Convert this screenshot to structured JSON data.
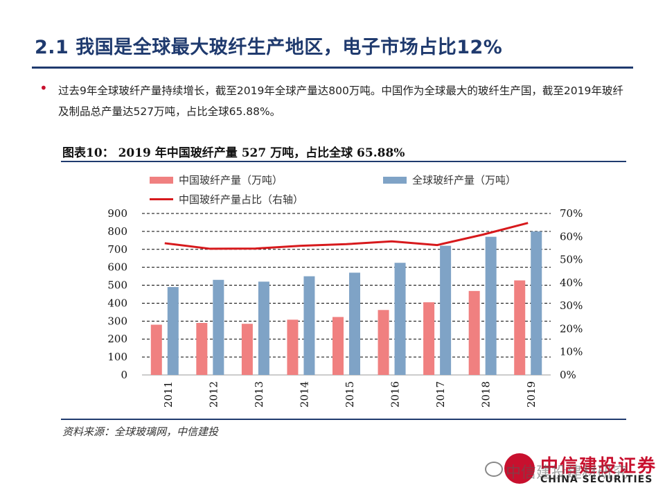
{
  "slide": {
    "title": "2.1 我国是全球最大玻纤生产地区，电子市场占比12%",
    "paragraph": "过去9年全球玻纤产量持续增长，截至2019年全球产量达800万吨。中国作为全球最大的玻纤生产国，截至2019年玻纤及制品总产量达527万吨，占比全球65.88%。"
  },
  "figure": {
    "title": "图表10： 2019 年中国玻纤产量 527 万吨，占比全球 65.88%",
    "source": "资料来源：全球玻璃网，中信建投"
  },
  "branding": {
    "name_cn": "中信建投证券",
    "name_en": "CHINA SECURITIES",
    "watermark": "中信建投建材研究"
  },
  "colors": {
    "china_bar": "#f08080",
    "global_bar": "#7fa3c6",
    "share_line": "#d7191c",
    "accent": "#1f3a6e"
  },
  "chart_data": {
    "type": "bar",
    "categories": [
      "2011",
      "2012",
      "2013",
      "2014",
      "2015",
      "2016",
      "2017",
      "2018",
      "2019"
    ],
    "series": [
      {
        "name": "中国玻纤产量（万吨）",
        "type": "bar",
        "axis": "left",
        "values": [
          280,
          290,
          285,
          308,
          323,
          362,
          405,
          468,
          527
        ]
      },
      {
        "name": "全球玻纤产量（万吨）",
        "type": "bar",
        "axis": "left",
        "values": [
          490,
          530,
          520,
          550,
          570,
          625,
          720,
          770,
          800
        ]
      },
      {
        "name": "中国玻纤产量占比（右轴）",
        "type": "line",
        "axis": "right",
        "values": [
          0.571,
          0.547,
          0.548,
          0.56,
          0.567,
          0.579,
          0.563,
          0.608,
          0.659
        ]
      }
    ],
    "y_left": {
      "min": 0,
      "max": 900,
      "ticks": [
        0,
        100,
        200,
        300,
        400,
        500,
        600,
        700,
        800,
        900
      ]
    },
    "y_right": {
      "min": 0,
      "max": 0.7,
      "ticks": [
        "0%",
        "10%",
        "20%",
        "30%",
        "40%",
        "50%",
        "60%",
        "70%"
      ]
    },
    "grid": "horizontal-dashed",
    "legend_position": "top"
  }
}
